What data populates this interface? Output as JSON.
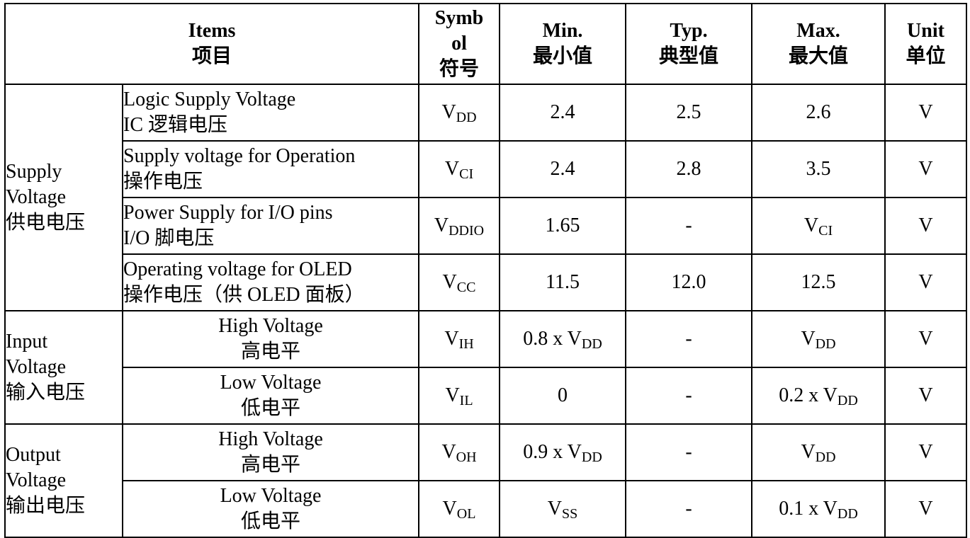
{
  "header": {
    "items_en": "Items",
    "items_zh": "项目",
    "symbol_l1": "Symb",
    "symbol_l2": "ol",
    "symbol_zh": "符号",
    "min_en": "Min.",
    "min_zh": "最小值",
    "typ_en": "Typ.",
    "typ_zh": "典型值",
    "max_en": "Max.",
    "max_zh": "最大值",
    "unit_en": "Unit",
    "unit_zh": "单位"
  },
  "groups": {
    "supply": {
      "en1": "Supply",
      "en2": "Voltage",
      "zh": "供电电压"
    },
    "input": {
      "en1": "Input",
      "en2": "Voltage",
      "zh": "输入电压"
    },
    "output": {
      "en1": "Output",
      "en2": "Voltage",
      "zh": "输出电压"
    }
  },
  "rows": [
    {
      "en": "Logic Supply Voltage",
      "zh": "IC 逻辑电压",
      "sym": "V",
      "sym_sub": "DD",
      "min": "2.4",
      "min_sub": "",
      "typ": "2.5",
      "max": "2.6",
      "max_sub": "",
      "unit": "V"
    },
    {
      "en": "Supply voltage for Operation",
      "zh": "操作电压",
      "sym": "V",
      "sym_sub": "CI",
      "min": "2.4",
      "min_sub": "",
      "typ": "2.8",
      "max": "3.5",
      "max_sub": "",
      "unit": "V"
    },
    {
      "en": "Power Supply for I/O pins",
      "zh": "I/O 脚电压",
      "sym": "V",
      "sym_sub": "DDIO",
      "min": "1.65",
      "min_sub": "",
      "typ": "-",
      "max": "V",
      "max_sub": "CI",
      "unit": "V"
    },
    {
      "en": "Operating voltage for OLED",
      "zh": "操作电压（供 OLED 面板）",
      "sym": "V",
      "sym_sub": "CC",
      "min": "11.5",
      "min_sub": "",
      "typ": "12.0",
      "max": "12.5",
      "max_sub": "",
      "unit": "V"
    },
    {
      "en": "High Voltage",
      "zh": "高电平",
      "sym": "V",
      "sym_sub": "IH",
      "min": "0.8 x V",
      "min_sub": "DD",
      "typ": "-",
      "max": "V",
      "max_sub": "DD",
      "unit": "V"
    },
    {
      "en": "Low Voltage",
      "zh": "低电平",
      "sym": "V",
      "sym_sub": "IL",
      "min": "0",
      "min_sub": "",
      "typ": "-",
      "max": "0.2 x V",
      "max_sub": "DD",
      "unit": "V"
    },
    {
      "en": "High Voltage",
      "zh": "高电平",
      "sym": "V",
      "sym_sub": "OH",
      "min": "0.9 x V",
      "min_sub": "DD",
      "typ": "-",
      "max": "V",
      "max_sub": "DD",
      "unit": "V"
    },
    {
      "en": "Low Voltage",
      "zh": "低电平",
      "sym": "V",
      "sym_sub": "OL",
      "min": "V",
      "min_sub": "SS",
      "typ": "-",
      "max": "0.1 x V",
      "max_sub": "DD",
      "unit": "V"
    }
  ]
}
